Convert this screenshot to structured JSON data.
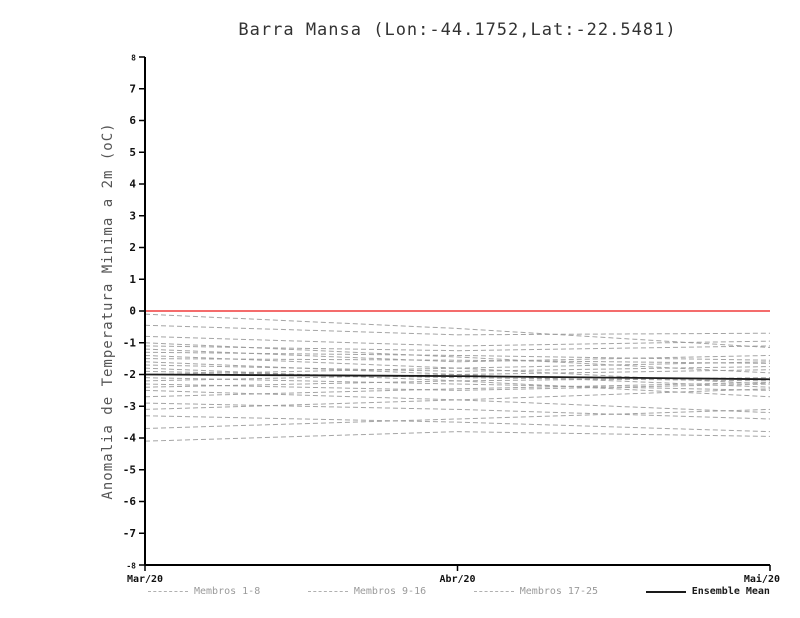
{
  "title": "Barra Mansa (Lon:-44.1752,Lat:-22.5481)",
  "chart_data": {
    "type": "line",
    "title": "Barra Mansa (Lon:-44.1752,Lat:-22.5481)",
    "xlabel": "",
    "ylabel": "Anomalia de Temperatura Minima a 2m (oC)",
    "x": [
      "Mar/20",
      "Abr/20",
      "Mai/20"
    ],
    "ylim": [
      -8,
      8
    ],
    "ytick_step": 1,
    "grid": false,
    "legend_position": "bottom",
    "zero_line": {
      "value": 0,
      "color": "#f03c3c"
    },
    "colors": {
      "member": "#9a9a9a",
      "mean": "#1a1a1a"
    },
    "series": [
      {
        "name": "Membro 1",
        "role": "member",
        "values": [
          -0.1,
          -0.55,
          -1.15
        ]
      },
      {
        "name": "Membro 2",
        "role": "member",
        "values": [
          -0.45,
          -0.75,
          -0.7
        ]
      },
      {
        "name": "Membro 3",
        "role": "member",
        "values": [
          -0.8,
          -1.1,
          -0.95
        ]
      },
      {
        "name": "Membro 4",
        "role": "member",
        "values": [
          -1.0,
          -1.45,
          -1.95
        ]
      },
      {
        "name": "Membro 5",
        "role": "member",
        "values": [
          -1.1,
          -1.25,
          -1.1
        ]
      },
      {
        "name": "Membro 6",
        "role": "member",
        "values": [
          -1.2,
          -1.6,
          -1.4
        ]
      },
      {
        "name": "Membro 7",
        "role": "member",
        "values": [
          -1.3,
          -1.4,
          -1.55
        ]
      },
      {
        "name": "Membro 8",
        "role": "member",
        "values": [
          -1.4,
          -1.8,
          -2.3
        ]
      },
      {
        "name": "Membro 9",
        "role": "member",
        "values": [
          -1.5,
          -1.55,
          -1.65
        ]
      },
      {
        "name": "Membro 10",
        "role": "member",
        "values": [
          -1.6,
          -2.0,
          -2.4
        ]
      },
      {
        "name": "Membro 11",
        "role": "member",
        "values": [
          -1.7,
          -1.9,
          -1.75
        ]
      },
      {
        "name": "Membro 12",
        "role": "member",
        "values": [
          -1.8,
          -2.2,
          -2.7
        ]
      },
      {
        "name": "Membro 13",
        "role": "member",
        "values": [
          -1.9,
          -2.1,
          -2.2
        ]
      },
      {
        "name": "Membro 14",
        "role": "member",
        "values": [
          -2.0,
          -1.8,
          -1.6
        ]
      },
      {
        "name": "Membro 15",
        "role": "member",
        "values": [
          -2.1,
          -2.3,
          -2.5
        ]
      },
      {
        "name": "Membro 16",
        "role": "member",
        "values": [
          -2.2,
          -2.0,
          -1.85
        ]
      },
      {
        "name": "Membro 17",
        "role": "member",
        "values": [
          -2.3,
          -2.5,
          -2.3
        ]
      },
      {
        "name": "Membro 18",
        "role": "member",
        "values": [
          -2.4,
          -2.2,
          -2.1
        ]
      },
      {
        "name": "Membro 19",
        "role": "member",
        "values": [
          -2.5,
          -2.8,
          -3.2
        ]
      },
      {
        "name": "Membro 20",
        "role": "member",
        "values": [
          -2.7,
          -2.45,
          -2.25
        ]
      },
      {
        "name": "Membro 21",
        "role": "member",
        "values": [
          -2.9,
          -3.1,
          -3.4
        ]
      },
      {
        "name": "Membro 22",
        "role": "member",
        "values": [
          -3.1,
          -2.8,
          -2.45
        ]
      },
      {
        "name": "Membro 23",
        "role": "member",
        "values": [
          -3.3,
          -3.5,
          -3.8
        ]
      },
      {
        "name": "Membro 24",
        "role": "member",
        "values": [
          -3.7,
          -3.4,
          -3.1
        ]
      },
      {
        "name": "Membro 25",
        "role": "member",
        "values": [
          -4.1,
          -3.8,
          -3.95
        ]
      },
      {
        "name": "Ensemble Mean",
        "role": "mean",
        "values": [
          -2.0,
          -2.05,
          -2.15
        ]
      }
    ]
  },
  "legend": {
    "entries": [
      {
        "label": "Membros 1-8",
        "style": "member"
      },
      {
        "label": "Membros 9-16",
        "style": "member"
      },
      {
        "label": "Membros 17-25",
        "style": "member"
      },
      {
        "label": "Ensemble Mean",
        "style": "mean"
      }
    ]
  }
}
